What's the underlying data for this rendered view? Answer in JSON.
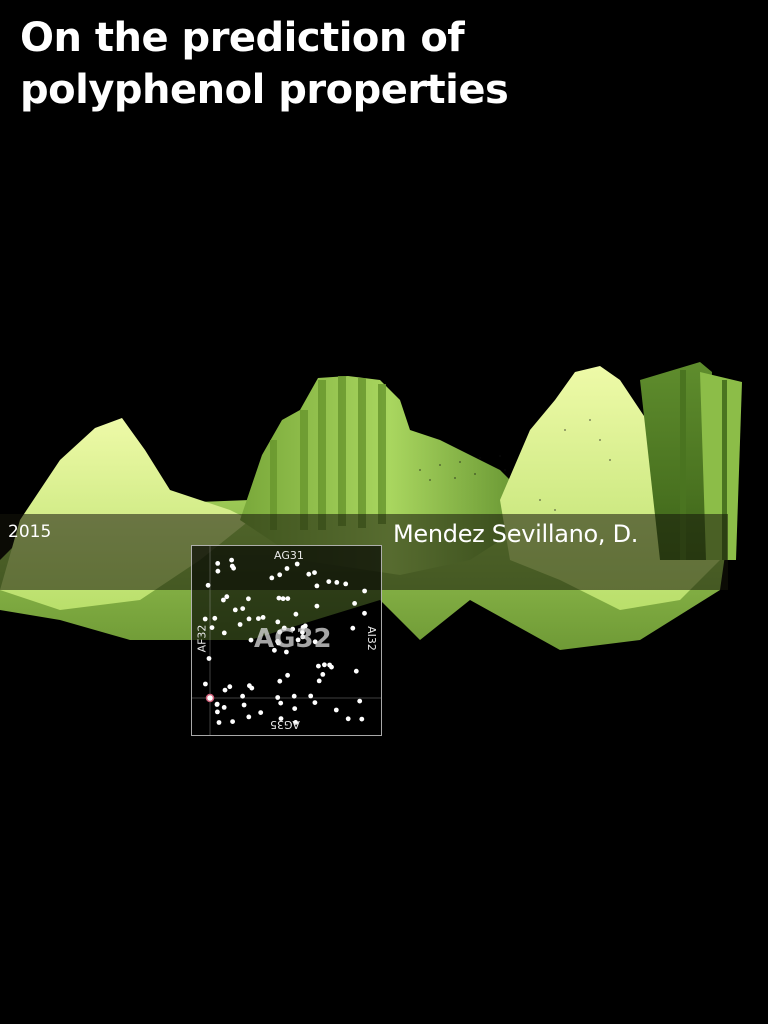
{
  "title_line1": "On the prediction of",
  "title_line2": "polyphenol properties",
  "year": "2015",
  "author": "Mendez Sevillano, D.",
  "minimap": {
    "cell": "AG32",
    "north": "AG31",
    "south": "AG35",
    "west": "AF32",
    "east": "AI32"
  },
  "colors": {
    "background": "#000000",
    "terrain_light": "#e6f79a",
    "terrain_mid": "#a7d45c",
    "terrain_dark": "#4f7a24",
    "text": "#ffffff"
  }
}
